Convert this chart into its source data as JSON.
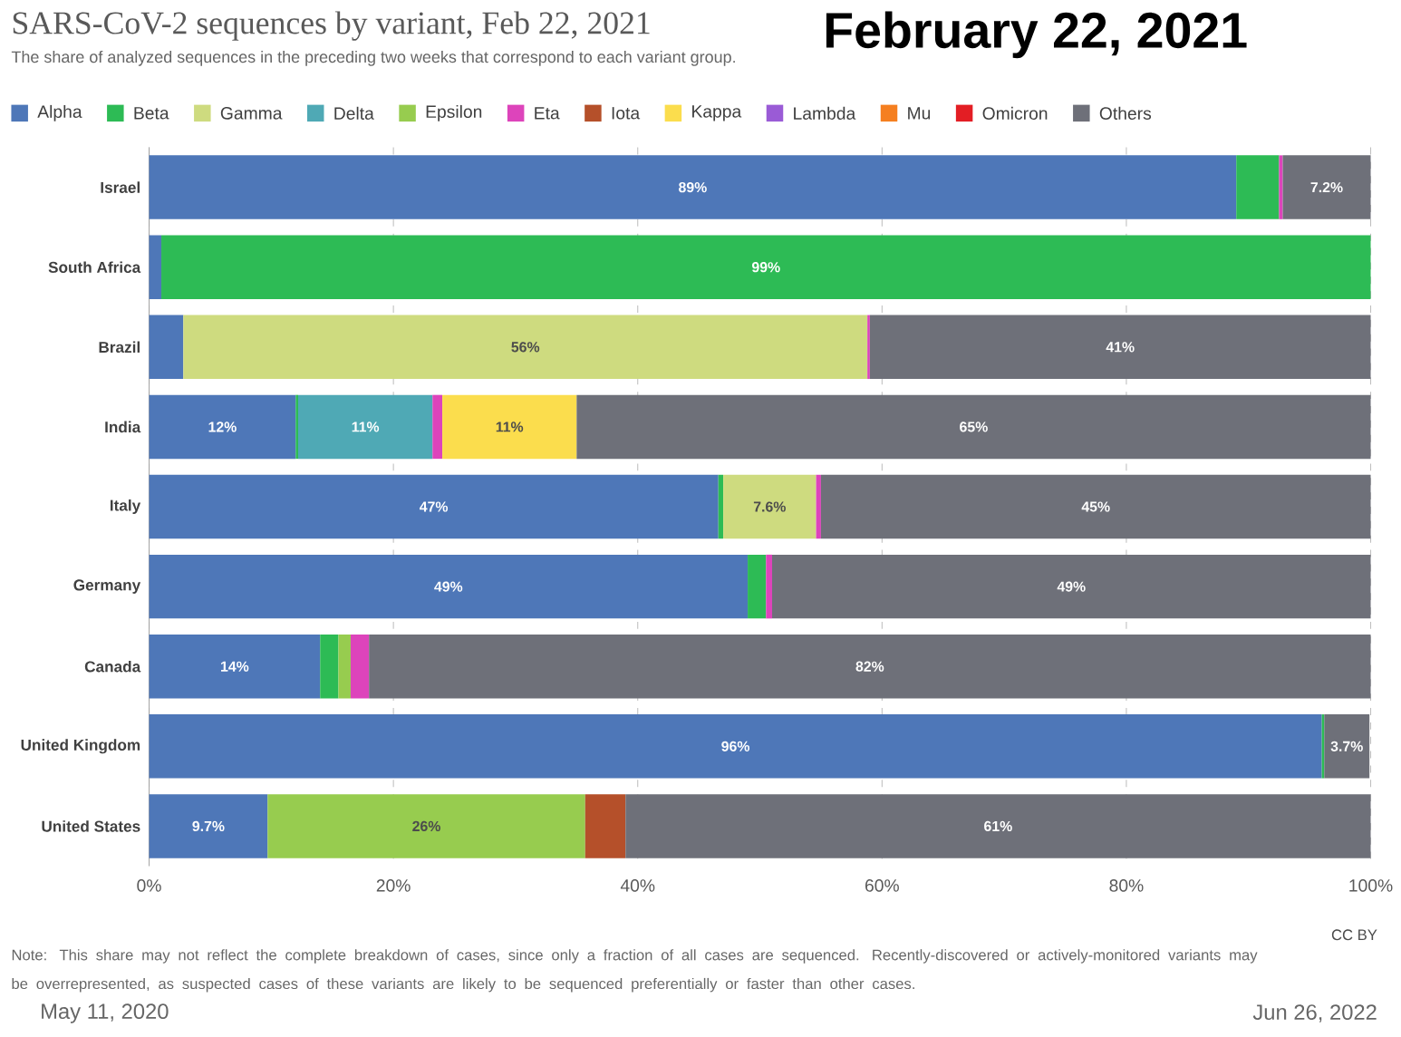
{
  "chart_data": {
    "type": "bar",
    "orientation": "horizontal",
    "stacked": true,
    "title": "SARS-CoV-2 sequences by variant, Feb 22, 2021",
    "subtitle": "The share of analyzed sequences in the preceding two weeks that correspond to each variant group.",
    "categories": [
      "Israel",
      "South Africa",
      "Brazil",
      "India",
      "Italy",
      "Germany",
      "Canada",
      "United Kingdom",
      "United States"
    ],
    "series": [
      {
        "name": "Alpha",
        "color": "#4e77b8",
        "values": [
          89,
          1,
          2.8,
          12,
          46.6,
          49,
          14,
          96,
          9.7
        ],
        "value_labels": [
          "89%",
          null,
          null,
          "12%",
          "47%",
          "49%",
          "14%",
          "96%",
          "9.7%"
        ]
      },
      {
        "name": "Beta",
        "color": "#2dbb55",
        "values": [
          3.5,
          99,
          null,
          0.2,
          0.4,
          1.5,
          1.5,
          0.2,
          null
        ],
        "value_labels": [
          null,
          "99%",
          null,
          null,
          null,
          null,
          null,
          null,
          null
        ]
      },
      {
        "name": "Gamma",
        "color": "#cedb7f",
        "values": [
          null,
          null,
          56,
          null,
          7.6,
          null,
          null,
          null,
          null
        ],
        "value_labels": [
          null,
          null,
          "56%",
          null,
          "7.6%",
          null,
          null,
          null,
          null
        ]
      },
      {
        "name": "Delta",
        "color": "#4fa9b5",
        "values": [
          null,
          null,
          null,
          11,
          null,
          null,
          null,
          null,
          null
        ],
        "value_labels": [
          null,
          null,
          null,
          "11%",
          null,
          null,
          null,
          null,
          null
        ]
      },
      {
        "name": "Epsilon",
        "color": "#97cc4f",
        "values": [
          null,
          null,
          null,
          null,
          null,
          null,
          1,
          null,
          26
        ],
        "value_labels": [
          null,
          null,
          null,
          null,
          null,
          null,
          null,
          null,
          "26%"
        ]
      },
      {
        "name": "Eta",
        "color": "#dd44bb",
        "values": [
          0.3,
          null,
          0.2,
          0.8,
          0.4,
          0.5,
          1.5,
          null,
          null
        ]
      },
      {
        "name": "Iota",
        "color": "#b5502a",
        "values": [
          null,
          null,
          null,
          null,
          null,
          null,
          null,
          null,
          3.3
        ]
      },
      {
        "name": "Kappa",
        "color": "#fbdd4d",
        "values": [
          null,
          null,
          null,
          11,
          null,
          null,
          null,
          null,
          null
        ],
        "value_labels": [
          null,
          null,
          null,
          "11%",
          null,
          null,
          null,
          null,
          null
        ]
      },
      {
        "name": "Lambda",
        "color": "#9a5bd6",
        "values": [
          null,
          null,
          null,
          null,
          null,
          null,
          null,
          null,
          null
        ]
      },
      {
        "name": "Mu",
        "color": "#f57f20",
        "values": [
          null,
          null,
          null,
          null,
          null,
          null,
          null,
          null,
          null
        ]
      },
      {
        "name": "Omicron",
        "color": "#e31e24",
        "values": [
          null,
          null,
          null,
          null,
          null,
          null,
          null,
          null,
          null
        ]
      },
      {
        "name": "Others",
        "color": "#6e7079",
        "values": [
          7.2,
          null,
          41,
          65,
          45,
          49,
          82,
          3.7,
          61
        ],
        "value_labels": [
          "7.2%",
          null,
          "41%",
          "65%",
          "45%",
          "49%",
          "82%",
          "3.7%",
          "61%"
        ]
      }
    ],
    "xlim": [
      0,
      100
    ],
    "xticks": [
      {
        "value": 0,
        "label": "0%"
      },
      {
        "value": 20,
        "label": "20%"
      },
      {
        "value": 40,
        "label": "40%"
      },
      {
        "value": 60,
        "label": "60%"
      },
      {
        "value": 80,
        "label": "80%"
      },
      {
        "value": 100,
        "label": "100%"
      }
    ],
    "grid": "x",
    "legend": "top",
    "annotations": [
      "February 22, 2021",
      "Note: This share may not reflect the complete breakdown of cases, since only a fraction of all cases are sequenced. Recently-discovered or actively-monitored variants may be overrepresented, as suspected cases of these variants are likely to be sequenced preferentially or faster than other cases.",
      "CC BY",
      "May 11, 2020",
      "Jun 26, 2022"
    ]
  }
}
